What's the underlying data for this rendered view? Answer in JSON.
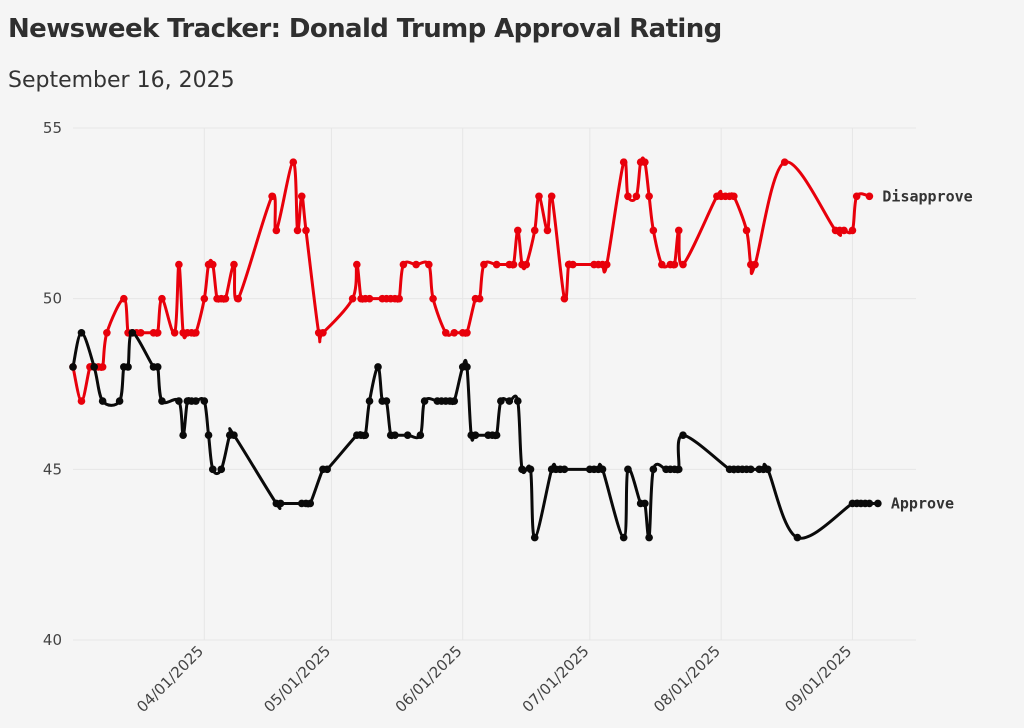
{
  "header": {
    "title": "Newsweek Tracker: Donald Trump Approval Rating",
    "subtitle": "September 16, 2025"
  },
  "chart_data": {
    "type": "line",
    "title": "Newsweek Tracker: Donald Trump Approval Rating",
    "subtitle": "September 16, 2025",
    "xlabel": "",
    "ylabel": "",
    "xlim": [
      "2025-03-01",
      "2025-09-16"
    ],
    "ylim": [
      40,
      55
    ],
    "y_ticks": [
      "40",
      "45",
      "50",
      "55"
    ],
    "x_ticks": [
      {
        "date": "2025-04-01",
        "label": "04/01/2025"
      },
      {
        "date": "2025-05-01",
        "label": "05/01/2025"
      },
      {
        "date": "2025-06-01",
        "label": "06/01/2025"
      },
      {
        "date": "2025-07-01",
        "label": "07/01/2025"
      },
      {
        "date": "2025-08-01",
        "label": "08/01/2025"
      },
      {
        "date": "2025-09-01",
        "label": "09/01/2025"
      }
    ],
    "grid": true,
    "legend": "direct labels at right end of lines",
    "series": [
      {
        "name": "Disapprove",
        "color": "#e8000b",
        "points": [
          [
            "2025-03-01",
            48
          ],
          [
            "2025-03-03",
            47
          ],
          [
            "2025-03-05",
            48
          ],
          [
            "2025-03-06",
            48
          ],
          [
            "2025-03-07",
            48
          ],
          [
            "2025-03-08",
            48
          ],
          [
            "2025-03-09",
            49
          ],
          [
            "2025-03-13",
            50
          ],
          [
            "2025-03-14",
            49
          ],
          [
            "2025-03-15",
            49
          ],
          [
            "2025-03-16",
            49
          ],
          [
            "2025-03-17",
            49
          ],
          [
            "2025-03-20",
            49
          ],
          [
            "2025-03-21",
            49
          ],
          [
            "2025-03-22",
            50
          ],
          [
            "2025-03-25",
            49
          ],
          [
            "2025-03-26",
            51
          ],
          [
            "2025-03-27",
            49
          ],
          [
            "2025-03-28",
            49
          ],
          [
            "2025-03-29",
            49
          ],
          [
            "2025-03-30",
            49
          ],
          [
            "2025-04-01",
            50
          ],
          [
            "2025-04-02",
            51
          ],
          [
            "2025-04-03",
            51
          ],
          [
            "2025-04-04",
            50
          ],
          [
            "2025-04-05",
            50
          ],
          [
            "2025-04-06",
            50
          ],
          [
            "2025-04-08",
            51
          ],
          [
            "2025-04-09",
            50
          ],
          [
            "2025-04-17",
            53
          ],
          [
            "2025-04-18",
            52
          ],
          [
            "2025-04-22",
            54
          ],
          [
            "2025-04-23",
            52
          ],
          [
            "2025-04-24",
            53
          ],
          [
            "2025-04-25",
            52
          ],
          [
            "2025-04-28",
            49
          ],
          [
            "2025-04-29",
            49
          ],
          [
            "2025-05-06",
            50
          ],
          [
            "2025-05-07",
            51
          ],
          [
            "2025-05-08",
            50
          ],
          [
            "2025-05-09",
            50
          ],
          [
            "2025-05-10",
            50
          ],
          [
            "2025-05-13",
            50
          ],
          [
            "2025-05-14",
            50
          ],
          [
            "2025-05-15",
            50
          ],
          [
            "2025-05-16",
            50
          ],
          [
            "2025-05-17",
            50
          ],
          [
            "2025-05-18",
            51
          ],
          [
            "2025-05-21",
            51
          ],
          [
            "2025-05-24",
            51
          ],
          [
            "2025-05-25",
            50
          ],
          [
            "2025-05-28",
            49
          ],
          [
            "2025-05-30",
            49
          ],
          [
            "2025-06-01",
            49
          ],
          [
            "2025-06-02",
            49
          ],
          [
            "2025-06-04",
            50
          ],
          [
            "2025-06-05",
            50
          ],
          [
            "2025-06-06",
            51
          ],
          [
            "2025-06-09",
            51
          ],
          [
            "2025-06-12",
            51
          ],
          [
            "2025-06-13",
            51
          ],
          [
            "2025-06-14",
            52
          ],
          [
            "2025-06-15",
            51
          ],
          [
            "2025-06-16",
            51
          ],
          [
            "2025-06-18",
            52
          ],
          [
            "2025-06-19",
            53
          ],
          [
            "2025-06-21",
            52
          ],
          [
            "2025-06-22",
            53
          ],
          [
            "2025-06-25",
            50
          ],
          [
            "2025-06-26",
            51
          ],
          [
            "2025-06-27",
            51
          ],
          [
            "2025-07-02",
            51
          ],
          [
            "2025-07-03",
            51
          ],
          [
            "2025-07-04",
            51
          ],
          [
            "2025-07-05",
            51
          ],
          [
            "2025-07-09",
            54
          ],
          [
            "2025-07-10",
            53
          ],
          [
            "2025-07-12",
            53
          ],
          [
            "2025-07-13",
            54
          ],
          [
            "2025-07-14",
            54
          ],
          [
            "2025-07-15",
            53
          ],
          [
            "2025-07-16",
            52
          ],
          [
            "2025-07-18",
            51
          ],
          [
            "2025-07-20",
            51
          ],
          [
            "2025-07-21",
            51
          ],
          [
            "2025-07-22",
            52
          ],
          [
            "2025-07-23",
            51
          ],
          [
            "2025-07-31",
            53
          ],
          [
            "2025-08-01",
            53
          ],
          [
            "2025-08-02",
            53
          ],
          [
            "2025-08-03",
            53
          ],
          [
            "2025-08-04",
            53
          ],
          [
            "2025-08-07",
            52
          ],
          [
            "2025-08-08",
            51
          ],
          [
            "2025-08-09",
            51
          ],
          [
            "2025-08-16",
            54
          ],
          [
            "2025-08-28",
            52
          ],
          [
            "2025-08-29",
            52
          ],
          [
            "2025-08-30",
            52
          ],
          [
            "2025-09-01",
            52
          ],
          [
            "2025-09-02",
            53
          ],
          [
            "2025-09-05",
            53
          ]
        ]
      },
      {
        "name": "Approve",
        "color": "#0a0a0a",
        "points": [
          [
            "2025-03-01",
            48
          ],
          [
            "2025-03-03",
            49
          ],
          [
            "2025-03-06",
            48
          ],
          [
            "2025-03-08",
            47
          ],
          [
            "2025-03-12",
            47
          ],
          [
            "2025-03-13",
            48
          ],
          [
            "2025-03-14",
            48
          ],
          [
            "2025-03-15",
            49
          ],
          [
            "2025-03-20",
            48
          ],
          [
            "2025-03-21",
            48
          ],
          [
            "2025-03-22",
            47
          ],
          [
            "2025-03-26",
            47
          ],
          [
            "2025-03-27",
            46
          ],
          [
            "2025-03-28",
            47
          ],
          [
            "2025-03-29",
            47
          ],
          [
            "2025-03-30",
            47
          ],
          [
            "2025-04-01",
            47
          ],
          [
            "2025-04-02",
            46
          ],
          [
            "2025-04-03",
            45
          ],
          [
            "2025-04-05",
            45
          ],
          [
            "2025-04-07",
            46
          ],
          [
            "2025-04-08",
            46
          ],
          [
            "2025-04-18",
            44
          ],
          [
            "2025-04-19",
            44
          ],
          [
            "2025-04-24",
            44
          ],
          [
            "2025-04-25",
            44
          ],
          [
            "2025-04-26",
            44
          ],
          [
            "2025-04-29",
            45
          ],
          [
            "2025-04-30",
            45
          ],
          [
            "2025-05-07",
            46
          ],
          [
            "2025-05-08",
            46
          ],
          [
            "2025-05-09",
            46
          ],
          [
            "2025-05-10",
            47
          ],
          [
            "2025-05-12",
            48
          ],
          [
            "2025-05-13",
            47
          ],
          [
            "2025-05-14",
            47
          ],
          [
            "2025-05-15",
            46
          ],
          [
            "2025-05-16",
            46
          ],
          [
            "2025-05-19",
            46
          ],
          [
            "2025-05-22",
            46
          ],
          [
            "2025-05-23",
            47
          ],
          [
            "2025-05-26",
            47
          ],
          [
            "2025-05-27",
            47
          ],
          [
            "2025-05-28",
            47
          ],
          [
            "2025-05-29",
            47
          ],
          [
            "2025-05-30",
            47
          ],
          [
            "2025-06-01",
            48
          ],
          [
            "2025-06-02",
            48
          ],
          [
            "2025-06-03",
            46
          ],
          [
            "2025-06-04",
            46
          ],
          [
            "2025-06-07",
            46
          ],
          [
            "2025-06-08",
            46
          ],
          [
            "2025-06-09",
            46
          ],
          [
            "2025-06-10",
            47
          ],
          [
            "2025-06-12",
            47
          ],
          [
            "2025-06-14",
            47
          ],
          [
            "2025-06-15",
            45
          ],
          [
            "2025-06-17",
            45
          ],
          [
            "2025-06-18",
            43
          ],
          [
            "2025-06-22",
            45
          ],
          [
            "2025-06-23",
            45
          ],
          [
            "2025-06-24",
            45
          ],
          [
            "2025-06-25",
            45
          ],
          [
            "2025-07-01",
            45
          ],
          [
            "2025-07-02",
            45
          ],
          [
            "2025-07-03",
            45
          ],
          [
            "2025-07-04",
            45
          ],
          [
            "2025-07-09",
            43
          ],
          [
            "2025-07-10",
            45
          ],
          [
            "2025-07-13",
            44
          ],
          [
            "2025-07-14",
            44
          ],
          [
            "2025-07-15",
            43
          ],
          [
            "2025-07-16",
            45
          ],
          [
            "2025-07-19",
            45
          ],
          [
            "2025-07-20",
            45
          ],
          [
            "2025-07-21",
            45
          ],
          [
            "2025-07-22",
            45
          ],
          [
            "2025-07-23",
            46
          ],
          [
            "2025-08-03",
            45
          ],
          [
            "2025-08-04",
            45
          ],
          [
            "2025-08-05",
            45
          ],
          [
            "2025-08-06",
            45
          ],
          [
            "2025-08-07",
            45
          ],
          [
            "2025-08-08",
            45
          ],
          [
            "2025-08-10",
            45
          ],
          [
            "2025-08-11",
            45
          ],
          [
            "2025-08-12",
            45
          ],
          [
            "2025-08-19",
            43
          ],
          [
            "2025-09-01",
            44
          ],
          [
            "2025-09-02",
            44
          ],
          [
            "2025-09-03",
            44
          ],
          [
            "2025-09-04",
            44
          ],
          [
            "2025-09-05",
            44
          ],
          [
            "2025-09-07",
            44
          ]
        ]
      }
    ]
  }
}
